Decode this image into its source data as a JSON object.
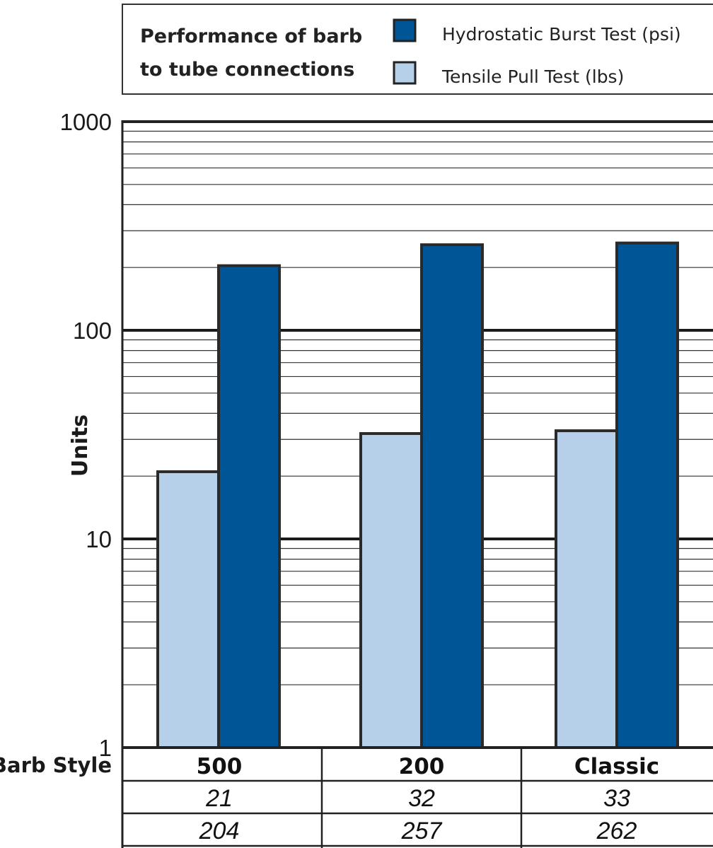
{
  "chart_data": {
    "type": "bar",
    "title": "Performance of barb to tube connections",
    "title_lines": [
      "Performance of barb",
      "to tube connections"
    ],
    "ylabel": "Units",
    "xlabel": "Barb Style",
    "yscale": "log",
    "ylim": [
      1,
      1000
    ],
    "yticks": [
      {
        "value": 1,
        "label": "1"
      },
      {
        "value": 10,
        "label": "10"
      },
      {
        "value": 100,
        "label": "100"
      },
      {
        "value": 1000,
        "label": "1000"
      }
    ],
    "grid": true,
    "legend_position": "top",
    "categories": [
      "500",
      "200",
      "Classic"
    ],
    "series": [
      {
        "name": "Tensile Pull Test (lbs)",
        "color": "#b5d0e8",
        "values": [
          21,
          32,
          33
        ]
      },
      {
        "name": "Hydrostatic Burst Test (psi)",
        "color": "#005597",
        "values": [
          204,
          257,
          262
        ]
      }
    ],
    "table_rows": [
      [
        "21",
        "32",
        "33"
      ],
      [
        "204",
        "257",
        "262"
      ]
    ]
  }
}
